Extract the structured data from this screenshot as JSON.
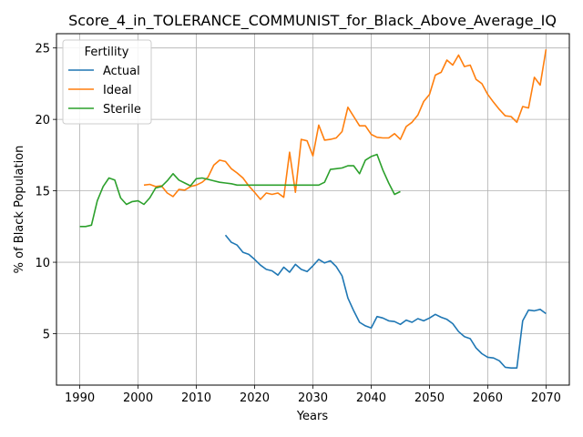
{
  "chart_data": {
    "type": "line",
    "title": "Score_4_in_TOLERANCE_COMMUNIST_for_Black_Above_Average_IQ",
    "xlabel": "Years",
    "ylabel": "% of Black Population",
    "xlim": [
      1986,
      2074
    ],
    "ylim": [
      1.4,
      26.0
    ],
    "xticks": [
      1990,
      2000,
      2010,
      2020,
      2030,
      2040,
      2050,
      2060,
      2070
    ],
    "yticks": [
      5,
      10,
      15,
      20,
      25
    ],
    "grid": true,
    "legend": {
      "title": "Fertility",
      "position": "top-left"
    },
    "series": [
      {
        "name": "Actual",
        "color": "#1f77b4",
        "x": [
          2015,
          2016,
          2017,
          2018,
          2019,
          2020,
          2021,
          2022,
          2023,
          2024,
          2025,
          2026,
          2027,
          2028,
          2029,
          2030,
          2031,
          2032,
          2033,
          2034,
          2035,
          2036,
          2037,
          2038,
          2039,
          2040,
          2041,
          2042,
          2043,
          2044,
          2045,
          2046,
          2047,
          2048,
          2049,
          2050,
          2051,
          2052,
          2053,
          2054,
          2055,
          2056,
          2057,
          2058,
          2059,
          2060,
          2061,
          2062,
          2063,
          2064,
          2065,
          2066,
          2067,
          2068,
          2069,
          2070
        ],
        "y": [
          11.9,
          11.4,
          11.2,
          10.7,
          10.55,
          10.2,
          9.8,
          9.5,
          9.4,
          9.1,
          9.65,
          9.3,
          9.85,
          9.5,
          9.35,
          9.75,
          10.2,
          9.95,
          10.1,
          9.7,
          9.05,
          7.5,
          6.6,
          5.8,
          5.55,
          5.4,
          6.2,
          6.1,
          5.9,
          5.85,
          5.65,
          5.95,
          5.8,
          6.05,
          5.9,
          6.1,
          6.35,
          6.15,
          6.0,
          5.7,
          5.15,
          4.8,
          4.65,
          4.0,
          3.6,
          3.35,
          3.3,
          3.1,
          2.65,
          2.6,
          2.6,
          5.9,
          6.65,
          6.6,
          6.7,
          6.4
        ]
      },
      {
        "name": "Ideal",
        "color": "#ff7f0e",
        "x": [
          2001,
          2002,
          2003,
          2004,
          2005,
          2006,
          2007,
          2008,
          2009,
          2010,
          2011,
          2012,
          2013,
          2014,
          2015,
          2016,
          2017,
          2018,
          2019,
          2020,
          2021,
          2022,
          2023,
          2024,
          2025,
          2026,
          2027,
          2028,
          2029,
          2030,
          2031,
          2032,
          2033,
          2034,
          2035,
          2036,
          2037,
          2038,
          2039,
          2040,
          2041,
          2042,
          2043,
          2044,
          2045,
          2046,
          2047,
          2048,
          2049,
          2050,
          2051,
          2052,
          2053,
          2054,
          2055,
          2056,
          2057,
          2058,
          2059,
          2060,
          2061,
          2062,
          2063,
          2064,
          2065,
          2066,
          2067,
          2068,
          2069,
          2070
        ],
        "y": [
          15.4,
          15.45,
          15.3,
          15.35,
          14.85,
          14.6,
          15.1,
          15.05,
          15.3,
          15.4,
          15.6,
          15.95,
          16.8,
          17.15,
          17.05,
          16.55,
          16.25,
          15.9,
          15.35,
          14.9,
          14.4,
          14.85,
          14.75,
          14.85,
          14.55,
          17.7,
          14.9,
          18.6,
          18.5,
          17.45,
          19.6,
          18.55,
          18.6,
          18.7,
          19.15,
          20.85,
          20.2,
          19.55,
          19.55,
          18.95,
          18.75,
          18.7,
          18.7,
          19.0,
          18.6,
          19.5,
          19.8,
          20.3,
          21.25,
          21.75,
          23.1,
          23.3,
          24.15,
          23.8,
          24.5,
          23.7,
          23.8,
          22.8,
          22.5,
          21.75,
          21.2,
          20.7,
          20.25,
          20.2,
          19.8,
          20.9,
          20.8,
          22.95,
          22.4,
          24.9
        ]
      },
      {
        "name": "Sterile",
        "color": "#2ca02c",
        "x": [
          1990,
          1991,
          1992,
          1993,
          1994,
          1995,
          1996,
          1997,
          1998,
          1999,
          2000,
          2001,
          2002,
          2003,
          2004,
          2005,
          2006,
          2007,
          2008,
          2009,
          2010,
          2011,
          2012,
          2013,
          2014,
          2015,
          2016,
          2017,
          2018,
          2019,
          2020,
          2021,
          2022,
          2023,
          2024,
          2025,
          2026,
          2027,
          2028,
          2029,
          2030,
          2031,
          2032,
          2033,
          2034,
          2035,
          2036,
          2037,
          2038,
          2039,
          2040,
          2041,
          2042,
          2043,
          2044,
          2045
        ],
        "y": [
          12.5,
          12.5,
          12.6,
          14.3,
          15.3,
          15.9,
          15.75,
          14.5,
          14.05,
          14.25,
          14.3,
          14.05,
          14.5,
          15.2,
          15.3,
          15.7,
          16.2,
          15.75,
          15.55,
          15.35,
          15.85,
          15.9,
          15.8,
          15.7,
          15.6,
          15.55,
          15.5,
          15.4,
          15.4,
          15.4,
          15.4,
          15.4,
          15.4,
          15.4,
          15.4,
          15.4,
          15.4,
          15.4,
          15.4,
          15.4,
          15.4,
          15.4,
          15.6,
          16.5,
          16.55,
          16.6,
          16.75,
          16.75,
          16.2,
          17.15,
          17.4,
          17.55,
          16.45,
          15.55,
          14.75,
          14.95
        ]
      }
    ]
  }
}
